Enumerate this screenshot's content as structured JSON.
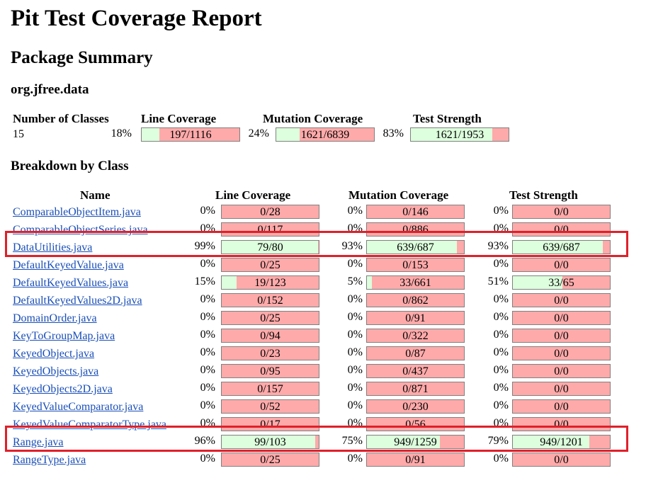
{
  "title": "Pit Test Coverage Report",
  "package_summary_heading": "Package Summary",
  "package_name": "org.jfree.data",
  "summary": {
    "headers": {
      "classes": "Number of Classes",
      "line": "Line Coverage",
      "mutation": "Mutation Coverage",
      "strength": "Test Strength"
    },
    "classes": "15",
    "line": {
      "pct": "18%",
      "label": "197/1116",
      "frac": 0.18
    },
    "mutation": {
      "pct": "24%",
      "label": "1621/6839",
      "frac": 0.24
    },
    "strength": {
      "pct": "83%",
      "label": "1621/1953",
      "frac": 0.83
    }
  },
  "breakdown_heading": "Breakdown by Class",
  "table_headers": {
    "name": "Name",
    "line": "Line Coverage",
    "mutation": "Mutation Coverage",
    "strength": "Test Strength"
  },
  "rows": [
    {
      "name": "ComparableObjectItem.java",
      "line": {
        "pct": "0%",
        "label": "0/28",
        "frac": 0
      },
      "mutation": {
        "pct": "0%",
        "label": "0/146",
        "frac": 0
      },
      "strength": {
        "pct": "0%",
        "label": "0/0",
        "frac": 0
      }
    },
    {
      "name": "ComparableObjectSeries.java",
      "line": {
        "pct": "0%",
        "label": "0/117",
        "frac": 0
      },
      "mutation": {
        "pct": "0%",
        "label": "0/886",
        "frac": 0
      },
      "strength": {
        "pct": "0%",
        "label": "0/0",
        "frac": 0
      }
    },
    {
      "name": "DataUtilities.java",
      "line": {
        "pct": "99%",
        "label": "79/80",
        "frac": 0.99
      },
      "mutation": {
        "pct": "93%",
        "label": "639/687",
        "frac": 0.93
      },
      "strength": {
        "pct": "93%",
        "label": "639/687",
        "frac": 0.93
      }
    },
    {
      "name": "DefaultKeyedValue.java",
      "line": {
        "pct": "0%",
        "label": "0/25",
        "frac": 0
      },
      "mutation": {
        "pct": "0%",
        "label": "0/153",
        "frac": 0
      },
      "strength": {
        "pct": "0%",
        "label": "0/0",
        "frac": 0
      }
    },
    {
      "name": "DefaultKeyedValues.java",
      "line": {
        "pct": "15%",
        "label": "19/123",
        "frac": 0.15
      },
      "mutation": {
        "pct": "5%",
        "label": "33/661",
        "frac": 0.05
      },
      "strength": {
        "pct": "51%",
        "label": "33/65",
        "frac": 0.51
      }
    },
    {
      "name": "DefaultKeyedValues2D.java",
      "line": {
        "pct": "0%",
        "label": "0/152",
        "frac": 0
      },
      "mutation": {
        "pct": "0%",
        "label": "0/862",
        "frac": 0
      },
      "strength": {
        "pct": "0%",
        "label": "0/0",
        "frac": 0
      }
    },
    {
      "name": "DomainOrder.java",
      "line": {
        "pct": "0%",
        "label": "0/25",
        "frac": 0
      },
      "mutation": {
        "pct": "0%",
        "label": "0/91",
        "frac": 0
      },
      "strength": {
        "pct": "0%",
        "label": "0/0",
        "frac": 0
      }
    },
    {
      "name": "KeyToGroupMap.java",
      "line": {
        "pct": "0%",
        "label": "0/94",
        "frac": 0
      },
      "mutation": {
        "pct": "0%",
        "label": "0/322",
        "frac": 0
      },
      "strength": {
        "pct": "0%",
        "label": "0/0",
        "frac": 0
      }
    },
    {
      "name": "KeyedObject.java",
      "line": {
        "pct": "0%",
        "label": "0/23",
        "frac": 0
      },
      "mutation": {
        "pct": "0%",
        "label": "0/87",
        "frac": 0
      },
      "strength": {
        "pct": "0%",
        "label": "0/0",
        "frac": 0
      }
    },
    {
      "name": "KeyedObjects.java",
      "line": {
        "pct": "0%",
        "label": "0/95",
        "frac": 0
      },
      "mutation": {
        "pct": "0%",
        "label": "0/437",
        "frac": 0
      },
      "strength": {
        "pct": "0%",
        "label": "0/0",
        "frac": 0
      }
    },
    {
      "name": "KeyedObjects2D.java",
      "line": {
        "pct": "0%",
        "label": "0/157",
        "frac": 0
      },
      "mutation": {
        "pct": "0%",
        "label": "0/871",
        "frac": 0
      },
      "strength": {
        "pct": "0%",
        "label": "0/0",
        "frac": 0
      }
    },
    {
      "name": "KeyedValueComparator.java",
      "line": {
        "pct": "0%",
        "label": "0/52",
        "frac": 0
      },
      "mutation": {
        "pct": "0%",
        "label": "0/230",
        "frac": 0
      },
      "strength": {
        "pct": "0%",
        "label": "0/0",
        "frac": 0
      }
    },
    {
      "name": "KeyedValueComparatorType.java",
      "line": {
        "pct": "0%",
        "label": "0/17",
        "frac": 0
      },
      "mutation": {
        "pct": "0%",
        "label": "0/56",
        "frac": 0
      },
      "strength": {
        "pct": "0%",
        "label": "0/0",
        "frac": 0
      }
    },
    {
      "name": "Range.java",
      "line": {
        "pct": "96%",
        "label": "99/103",
        "frac": 0.96
      },
      "mutation": {
        "pct": "75%",
        "label": "949/1259",
        "frac": 0.75
      },
      "strength": {
        "pct": "79%",
        "label": "949/1201",
        "frac": 0.79
      }
    },
    {
      "name": "RangeType.java",
      "line": {
        "pct": "0%",
        "label": "0/25",
        "frac": 0
      },
      "mutation": {
        "pct": "0%",
        "label": "0/91",
        "frac": 0
      },
      "strength": {
        "pct": "0%",
        "label": "0/0",
        "frac": 0
      }
    }
  ],
  "highlighted_rows": [
    "DataUtilities.java",
    "Range.java"
  ],
  "colors": {
    "covered": "#ddffdd",
    "uncovered": "#ffaaaa",
    "highlight": "#e0202a",
    "link": "#1a4fb8"
  }
}
